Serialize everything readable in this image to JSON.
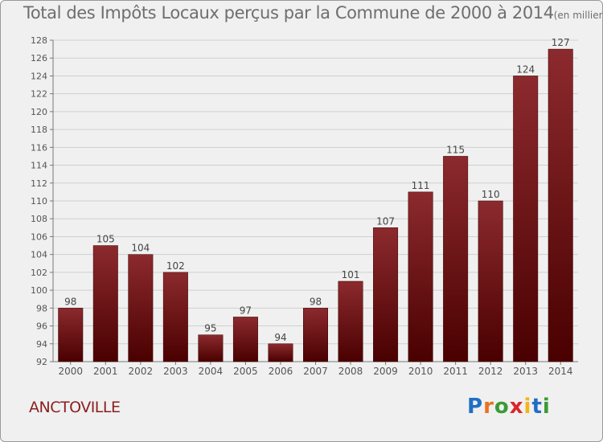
{
  "title": {
    "text": "Total des Impôts Locaux perçus par la Commune de 2000 à 2014",
    "unit": "(en milliers d'€)"
  },
  "commune": "ANCTOVILLE",
  "logo": {
    "text": "Proxiti",
    "colors": [
      "#1f6fc4",
      "#e8731f",
      "#3a9b35",
      "#d9262b",
      "#f2b51a",
      "#1f6fc4",
      "#3a9b35"
    ]
  },
  "colors": {
    "bar_top": "#8c2a2e",
    "bar_bottom": "#4a0000",
    "background": "#f0f0f0",
    "grid": "#cfcfcf",
    "text": "#555555"
  },
  "chart_data": {
    "type": "bar",
    "title": "Total des Impôts Locaux perçus par la Commune de 2000 à 2014",
    "categories": [
      "2000",
      "2001",
      "2002",
      "2003",
      "2004",
      "2005",
      "2006",
      "2007",
      "2008",
      "2009",
      "2010",
      "2011",
      "2012",
      "2013",
      "2014"
    ],
    "values": [
      98,
      105,
      104,
      102,
      95,
      97,
      94,
      98,
      101,
      107,
      111,
      115,
      110,
      124,
      127
    ],
    "data_labels": [
      "98",
      "105",
      "104",
      "102",
      "95",
      "97",
      "94",
      "98",
      "101",
      "107",
      "111",
      "115",
      "110",
      "124",
      "127"
    ],
    "ylim": [
      92,
      128
    ],
    "yticks": [
      92,
      94,
      96,
      98,
      100,
      102,
      104,
      106,
      108,
      110,
      112,
      114,
      116,
      118,
      120,
      122,
      124,
      126,
      128
    ],
    "xlabel": "",
    "ylabel": "",
    "grid": true,
    "legend": "none"
  }
}
